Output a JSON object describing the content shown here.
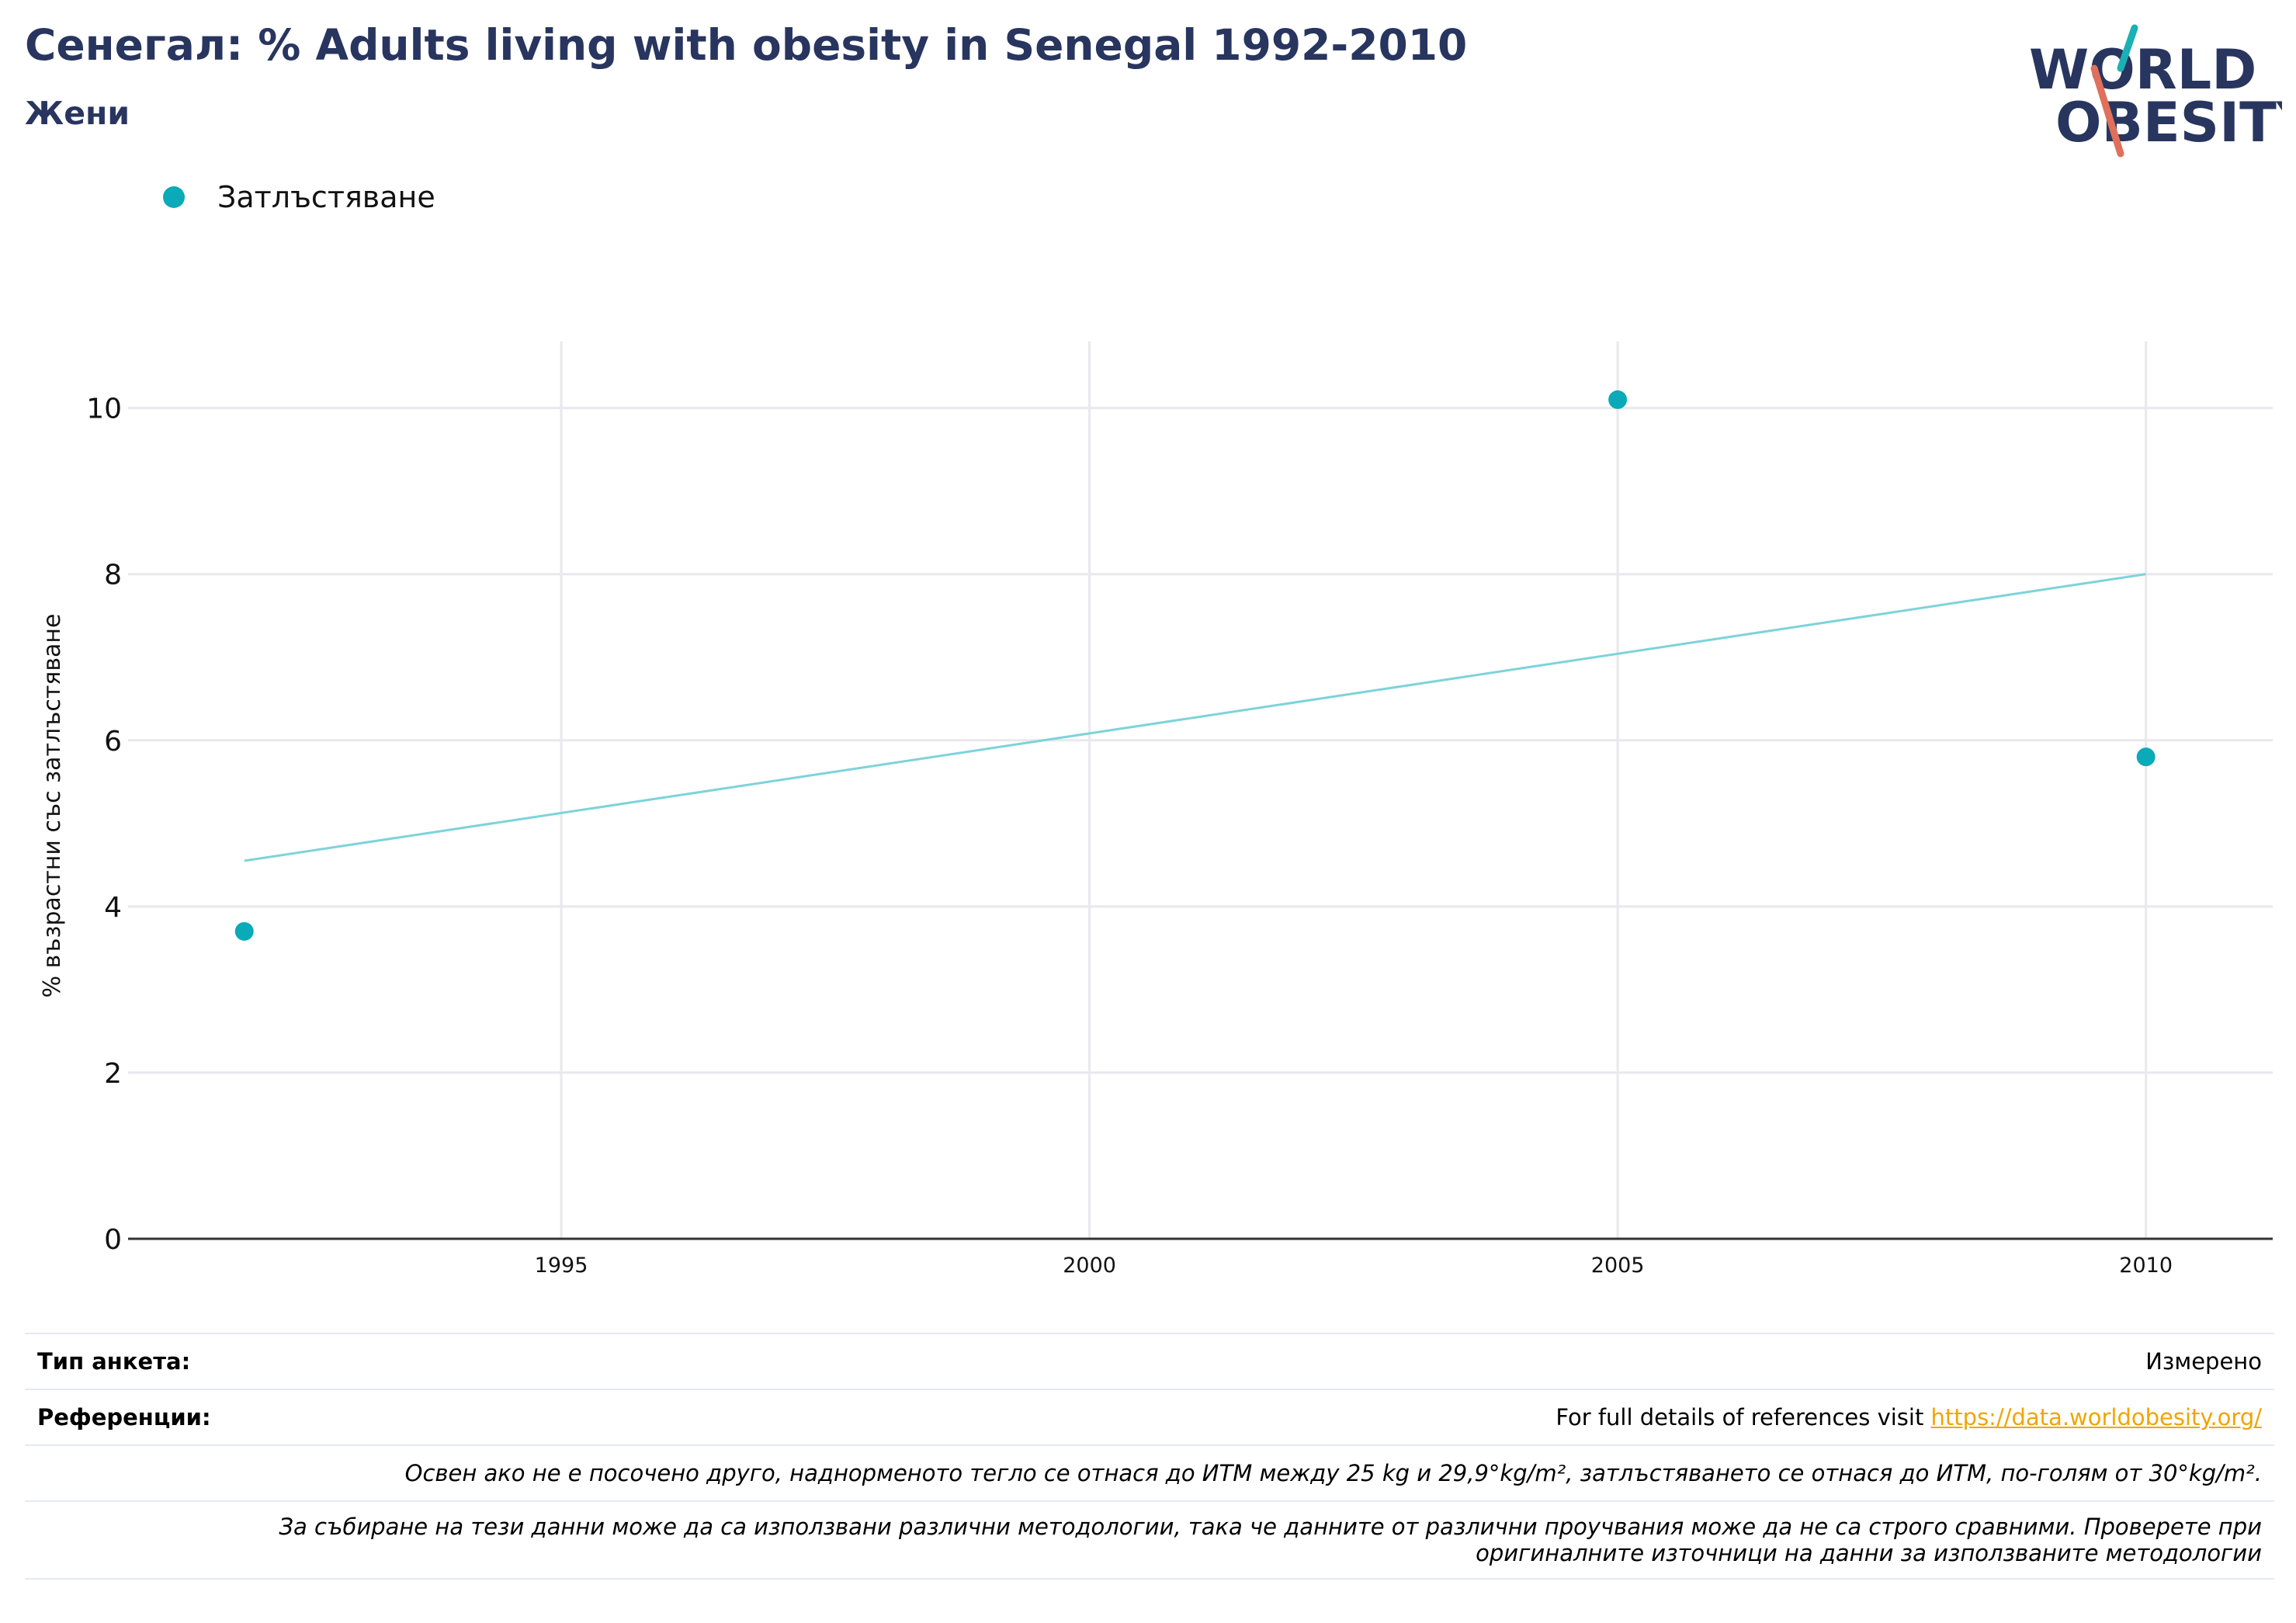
{
  "header": {
    "title": "Сенегал: % Adults living with obesity in Senegal 1992-2010",
    "subtitle": "Жени"
  },
  "logo": {
    "line1": "WORLD",
    "line2": "OBESITY"
  },
  "colors": {
    "point": "#0aaab8",
    "trend": "#7dd3da",
    "title": "#28355f",
    "grid": "#e8e8ee",
    "link": "#f0a500"
  },
  "chart_data": {
    "type": "scatter",
    "series": [
      {
        "name": "Затлъстяване",
        "x": [
          1992,
          2005,
          2010
        ],
        "y": [
          3.7,
          10.1,
          5.8
        ]
      }
    ],
    "trendline": {
      "x": [
        1992,
        2010
      ],
      "y": [
        4.55,
        8.0
      ]
    },
    "ylabel": "% възрастни със затлъстяване",
    "xlabel": "",
    "xlim": [
      1990.9,
      2011.2
    ],
    "ylim": [
      0,
      10.8
    ],
    "x_ticks": [
      1995,
      2000,
      2005,
      2010
    ],
    "y_ticks": [
      0,
      2,
      4,
      6,
      8,
      10
    ],
    "grid": true,
    "legend_position": "top-left"
  },
  "footer": {
    "survey_type_label": "Тип анкета:",
    "survey_type_value": "Измерено",
    "references_label": "Референции:",
    "references_text": "For full details of references visit ",
    "references_link": "https://data.worldobesity.org/",
    "note1": "Освен ако не е посочено друго, наднорменото тегло се отнася до ИТМ между 25 kg и 29,9°kg/m², затлъстяването се отнася до ИТМ, по-голям от 30°kg/m².",
    "note2_line1": "За събиране на тези данни може да са използвани различни методологии, така че данните от различни проучвания може да не са строго сравними. Проверете при",
    "note2_line2": "оригиналните източници на данни за използваните методологии"
  }
}
